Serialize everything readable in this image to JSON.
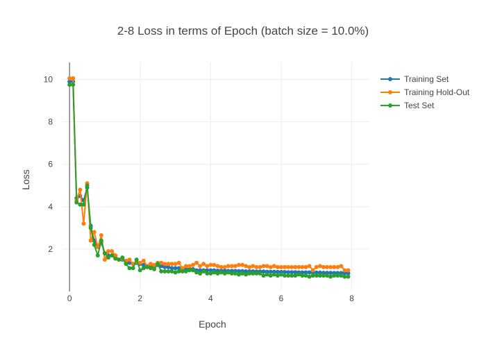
{
  "chart_data": {
    "type": "line",
    "title": "2-8 Loss in terms of Epoch (batch size = 10.0%)",
    "xlabel": "Epoch",
    "ylabel": "Loss",
    "xlim": [
      -0.2,
      8.5
    ],
    "ylim": [
      0,
      10.8
    ],
    "xticks": [
      0,
      2,
      4,
      6,
      8
    ],
    "yticks": [
      2,
      4,
      6,
      8,
      10
    ],
    "grid": true,
    "legend_position": "top-right",
    "series": [
      {
        "name": "Training Set",
        "color": "#1f77b4",
        "x": [
          0,
          0.1,
          0.2,
          0.3,
          0.4,
          0.5,
          0.6,
          0.7,
          0.8,
          0.9,
          1.0,
          1.1,
          1.2,
          1.3,
          1.4,
          1.5,
          1.6,
          1.7,
          1.8,
          1.9,
          2.0,
          2.1,
          2.2,
          2.3,
          2.4,
          2.5,
          2.6,
          2.7,
          2.8,
          2.9,
          3.0,
          3.1,
          3.2,
          3.3,
          3.4,
          3.5,
          3.6,
          3.7,
          3.8,
          3.9,
          4.0,
          4.1,
          4.2,
          4.3,
          4.4,
          4.5,
          4.6,
          4.7,
          4.8,
          4.9,
          5.0,
          5.1,
          5.2,
          5.3,
          5.4,
          5.5,
          5.6,
          5.7,
          5.8,
          5.9,
          6.0,
          6.1,
          6.2,
          6.3,
          6.4,
          6.5,
          6.6,
          6.7,
          6.8,
          6.9,
          7.0,
          7.1,
          7.2,
          7.3,
          7.4,
          7.5,
          7.6,
          7.7,
          7.8,
          7.9
        ],
        "y": [
          9.9,
          9.9,
          4.4,
          4.5,
          4.3,
          4.9,
          3.1,
          2.4,
          2.1,
          2.3,
          1.8,
          1.7,
          1.7,
          1.6,
          1.5,
          1.5,
          1.4,
          1.35,
          1.3,
          1.35,
          1.3,
          1.25,
          1.2,
          1.2,
          1.2,
          1.25,
          1.2,
          1.15,
          1.15,
          1.1,
          1.1,
          1.1,
          1.05,
          1.05,
          1.05,
          1.05,
          1.0,
          1.0,
          1.0,
          1.0,
          1.0,
          1.0,
          0.98,
          0.98,
          0.98,
          0.97,
          0.97,
          0.97,
          0.96,
          0.96,
          0.95,
          0.95,
          0.95,
          0.94,
          0.94,
          0.94,
          0.93,
          0.93,
          0.93,
          0.92,
          0.92,
          0.92,
          0.91,
          0.91,
          0.91,
          0.9,
          0.9,
          0.9,
          0.9,
          0.89,
          0.89,
          0.89,
          0.88,
          0.88,
          0.88,
          0.87,
          0.87,
          0.87,
          0.86,
          0.86
        ]
      },
      {
        "name": "Training Hold-Out",
        "color": "#ff7f0e",
        "x": [
          0,
          0.1,
          0.2,
          0.3,
          0.4,
          0.5,
          0.6,
          0.7,
          0.8,
          0.9,
          1.0,
          1.1,
          1.2,
          1.3,
          1.4,
          1.5,
          1.6,
          1.7,
          1.8,
          1.9,
          2.0,
          2.1,
          2.2,
          2.3,
          2.4,
          2.5,
          2.6,
          2.7,
          2.8,
          2.9,
          3.0,
          3.1,
          3.2,
          3.3,
          3.4,
          3.5,
          3.6,
          3.7,
          3.8,
          3.9,
          4.0,
          4.1,
          4.2,
          4.3,
          4.4,
          4.5,
          4.6,
          4.7,
          4.8,
          4.9,
          5.0,
          5.1,
          5.2,
          5.3,
          5.4,
          5.5,
          5.6,
          5.7,
          5.8,
          5.9,
          6.0,
          6.1,
          6.2,
          6.3,
          6.4,
          6.5,
          6.6,
          6.7,
          6.8,
          6.9,
          7.0,
          7.1,
          7.2,
          7.3,
          7.4,
          7.5,
          7.6,
          7.7,
          7.8,
          7.9
        ],
        "y": [
          10.05,
          10.05,
          4.3,
          4.8,
          3.2,
          5.1,
          2.4,
          2.8,
          2.1,
          2.65,
          1.5,
          1.9,
          1.9,
          1.7,
          1.5,
          1.55,
          1.45,
          1.5,
          1.3,
          1.4,
          1.35,
          1.45,
          1.2,
          1.3,
          1.25,
          1.35,
          1.35,
          1.3,
          1.3,
          1.3,
          1.3,
          1.35,
          1.1,
          1.2,
          1.2,
          1.25,
          1.35,
          1.2,
          1.3,
          1.2,
          1.25,
          1.25,
          1.2,
          1.15,
          1.15,
          1.2,
          1.2,
          1.2,
          1.25,
          1.25,
          1.2,
          1.15,
          1.2,
          1.15,
          1.15,
          1.2,
          1.2,
          1.15,
          1.2,
          1.15,
          1.15,
          1.15,
          1.15,
          1.15,
          1.15,
          1.15,
          1.15,
          1.15,
          1.2,
          1.0,
          1.15,
          1.2,
          1.15,
          1.15,
          1.15,
          1.15,
          1.15,
          1.2,
          1.0,
          1.0
        ]
      },
      {
        "name": "Test Set",
        "color": "#2ca02c",
        "x": [
          0,
          0.1,
          0.2,
          0.3,
          0.4,
          0.5,
          0.6,
          0.7,
          0.8,
          0.9,
          1.0,
          1.1,
          1.2,
          1.3,
          1.4,
          1.5,
          1.6,
          1.7,
          1.8,
          1.9,
          2.0,
          2.1,
          2.2,
          2.3,
          2.4,
          2.5,
          2.6,
          2.7,
          2.8,
          2.9,
          3.0,
          3.1,
          3.2,
          3.3,
          3.4,
          3.5,
          3.6,
          3.7,
          3.8,
          3.9,
          4.0,
          4.1,
          4.2,
          4.3,
          4.4,
          4.5,
          4.6,
          4.7,
          4.8,
          4.9,
          5.0,
          5.1,
          5.2,
          5.3,
          5.4,
          5.5,
          5.6,
          5.7,
          5.8,
          5.9,
          6.0,
          6.1,
          6.2,
          6.3,
          6.4,
          6.5,
          6.6,
          6.7,
          6.8,
          6.9,
          7.0,
          7.1,
          7.2,
          7.3,
          7.4,
          7.5,
          7.6,
          7.7,
          7.8,
          7.9
        ],
        "y": [
          9.75,
          9.75,
          4.2,
          4.1,
          4.1,
          5.0,
          3.0,
          2.2,
          1.7,
          2.4,
          1.8,
          1.6,
          1.7,
          1.55,
          1.5,
          1.6,
          1.3,
          1.1,
          1.1,
          1.5,
          1.0,
          1.1,
          1.15,
          1.1,
          1.05,
          1.3,
          0.95,
          0.95,
          0.95,
          0.95,
          0.9,
          0.95,
          0.95,
          0.95,
          1.0,
          1.0,
          0.9,
          0.85,
          0.95,
          0.85,
          0.85,
          0.9,
          0.85,
          0.9,
          0.85,
          0.9,
          0.85,
          0.85,
          0.8,
          0.85,
          0.8,
          0.85,
          0.85,
          0.85,
          0.85,
          0.75,
          0.8,
          0.75,
          0.8,
          0.75,
          0.8,
          0.75,
          0.75,
          0.75,
          0.75,
          0.8,
          0.75,
          0.75,
          0.7,
          0.75,
          0.75,
          0.75,
          0.75,
          0.75,
          0.7,
          0.75,
          0.75,
          0.75,
          0.7,
          0.7
        ]
      }
    ]
  }
}
